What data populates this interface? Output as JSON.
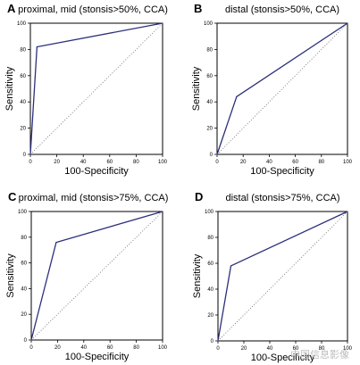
{
  "figure": {
    "watermark": "中国信息影像"
  },
  "chart_data": [
    {
      "type": "line",
      "panel": "A",
      "title": "proximal, mid (stonsis>50%, CCA)",
      "xlabel": "100-Specificity",
      "ylabel": "Sensitivity",
      "xlim": [
        0,
        100
      ],
      "ylim": [
        0,
        100
      ],
      "ticks": [
        0,
        20,
        40,
        60,
        80,
        100
      ],
      "series": [
        {
          "role": "roc",
          "x": [
            0,
            5,
            100
          ],
          "y": [
            0,
            82,
            100
          ]
        },
        {
          "role": "reference",
          "x": [
            0,
            100
          ],
          "y": [
            0,
            100
          ]
        }
      ]
    },
    {
      "type": "line",
      "panel": "B",
      "title": "distal (stonsis>50%, CCA)",
      "xlabel": "100-Specificity",
      "ylabel": "Sensitivity",
      "xlim": [
        0,
        100
      ],
      "ylim": [
        0,
        100
      ],
      "ticks": [
        0,
        20,
        40,
        60,
        80,
        100
      ],
      "series": [
        {
          "role": "roc",
          "x": [
            0,
            15,
            100
          ],
          "y": [
            0,
            44,
            100
          ]
        },
        {
          "role": "reference",
          "x": [
            0,
            100
          ],
          "y": [
            0,
            100
          ]
        }
      ]
    },
    {
      "type": "line",
      "panel": "C",
      "title": "proximal, mid (stonsis>75%, CCA)",
      "xlabel": "100-Specificity",
      "ylabel": "Sensitivity",
      "xlim": [
        0,
        100
      ],
      "ylim": [
        0,
        100
      ],
      "ticks": [
        0,
        20,
        40,
        60,
        80,
        100
      ],
      "series": [
        {
          "role": "roc",
          "x": [
            0,
            19,
            100
          ],
          "y": [
            0,
            76,
            100
          ]
        },
        {
          "role": "reference",
          "x": [
            0,
            100
          ],
          "y": [
            0,
            100
          ]
        }
      ]
    },
    {
      "type": "line",
      "panel": "D",
      "title": "distal (stonsis>75%, CCA)",
      "xlabel": "100-Specificity",
      "ylabel": "Sensitivity",
      "xlim": [
        0,
        100
      ],
      "ylim": [
        0,
        100
      ],
      "ticks": [
        0,
        20,
        40,
        60,
        80,
        100
      ],
      "series": [
        {
          "role": "roc",
          "x": [
            0,
            10,
            100
          ],
          "y": [
            0,
            58,
            100
          ]
        },
        {
          "role": "reference",
          "x": [
            0,
            100
          ],
          "y": [
            0,
            100
          ]
        }
      ]
    }
  ]
}
